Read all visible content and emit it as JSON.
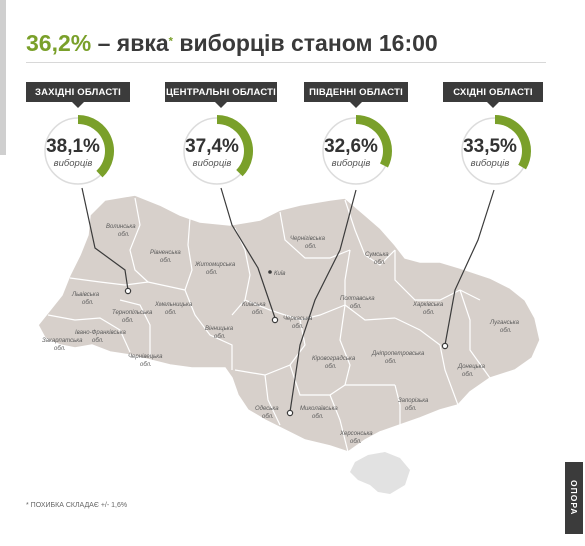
{
  "header": {
    "turnout": "36,2%",
    "rest": " – явка",
    "asterisk": "*",
    "rest2": " виборців станом 16:00"
  },
  "colors": {
    "accent": "#7aa02a",
    "dark": "#3b3b3b",
    "map_fill": "#d7d0cb",
    "gauge_bg": "#dcdcdc"
  },
  "groups": [
    {
      "label": "ЗАХІДНІ ОБЛАСТІ",
      "value": "38,1%",
      "fraction": 0.381,
      "caption": "виборців"
    },
    {
      "label": "ЦЕНТРАЛЬНІ ОБЛАСТІ",
      "value": "37,4%",
      "fraction": 0.374,
      "caption": "виборців"
    },
    {
      "label": "ПІВДЕННІ ОБЛАСТІ",
      "value": "32,6%",
      "fraction": 0.326,
      "caption": "виборців"
    },
    {
      "label": "СХІДНІ ОБЛАСТІ",
      "value": "33,5%",
      "fraction": 0.335,
      "caption": "виборців"
    }
  ],
  "regions": [
    {
      "name": "Волинська",
      "name2": "обл."
    },
    {
      "name": "Рівненська",
      "name2": "обл."
    },
    {
      "name": "Житомирська",
      "name2": "обл."
    },
    {
      "name": "Чернігівська",
      "name2": "обл."
    },
    {
      "name": "Сумська",
      "name2": "обл."
    },
    {
      "name": "Львівська",
      "name2": "обл."
    },
    {
      "name": "Тернопільська",
      "name2": "обл."
    },
    {
      "name": "Хмельницька",
      "name2": "обл."
    },
    {
      "name": "Київська",
      "name2": "обл."
    },
    {
      "name": "Полтавська",
      "name2": "обл."
    },
    {
      "name": "Харківська",
      "name2": "обл."
    },
    {
      "name": "Луганська",
      "name2": "обл."
    },
    {
      "name": "Закарпатська",
      "name2": "обл."
    },
    {
      "name": "Івано-Франківська",
      "name2": "обл."
    },
    {
      "name": "Вінницька",
      "name2": "обл."
    },
    {
      "name": "Черкаська",
      "name2": "обл."
    },
    {
      "name": "Чернівецька",
      "name2": "обл."
    },
    {
      "name": "Кіровоградська",
      "name2": "обл."
    },
    {
      "name": "Дніпропетровська",
      "name2": "обл."
    },
    {
      "name": "Донецька",
      "name2": "обл."
    },
    {
      "name": "Одеська",
      "name2": "обл."
    },
    {
      "name": "Миколаївська",
      "name2": "обл."
    },
    {
      "name": "Запорізька",
      "name2": "обл."
    },
    {
      "name": "Херсонська",
      "name2": "обл."
    }
  ],
  "capital": "Київ",
  "footnote": "* ПОХИБКА СКЛАДАЄ +/- 1,6%",
  "brand": "ОПОРА"
}
